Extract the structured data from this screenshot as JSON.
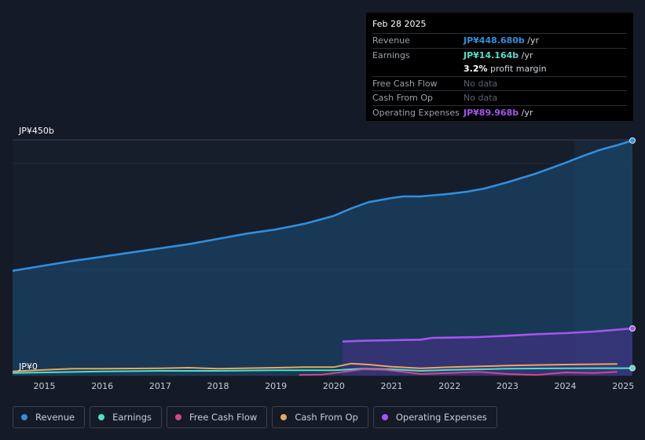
{
  "tooltip": {
    "date": "Feb 28 2025",
    "rows": {
      "revenue": {
        "label": "Revenue",
        "value": "JP¥448.680b",
        "suffix": " /yr"
      },
      "earnings": {
        "label": "Earnings",
        "value": "JP¥14.164b",
        "suffix": " /yr"
      },
      "margin": {
        "value": "3.2%",
        "suffix": " profit margin"
      },
      "fcf": {
        "label": "Free Cash Flow",
        "value": "No data"
      },
      "cfo": {
        "label": "Cash From Op",
        "value": "No data"
      },
      "opex": {
        "label": "Operating Expenses",
        "value": "JP¥89.968b",
        "suffix": " /yr"
      }
    }
  },
  "colors": {
    "revenue": "#2f8fe0",
    "earnings": "#4fe0c8",
    "fcf": "#d0488a",
    "cfo": "#e8a860",
    "opex": "#a555f0"
  },
  "legend": {
    "revenue": "Revenue",
    "earnings": "Earnings",
    "fcf": "Free Cash Flow",
    "cfo": "Cash From Op",
    "opex": "Operating Expenses"
  },
  "chart_data": {
    "type": "area",
    "title": "",
    "y_top_label": "JP¥450b",
    "y_bottom_label": "JP¥0",
    "ylim": [
      0,
      450
    ],
    "xlim": [
      2014.45,
      2025.16
    ],
    "x_ticks": [
      "2015",
      "2016",
      "2017",
      "2018",
      "2019",
      "2020",
      "2021",
      "2022",
      "2023",
      "2024",
      "2025"
    ],
    "x_tick_values": [
      2015,
      2016,
      2017,
      2018,
      2019,
      2020,
      2021,
      2022,
      2023,
      2024,
      2025
    ],
    "highlight_from": 2024.16,
    "series": [
      {
        "name": "Revenue",
        "key": "revenue",
        "x": [
          2014.45,
          2015.0,
          2015.5,
          2016.0,
          2016.5,
          2017.0,
          2017.5,
          2018.0,
          2018.5,
          2019.0,
          2019.5,
          2020.0,
          2020.3,
          2020.6,
          2021.0,
          2021.2,
          2021.5,
          2021.8,
          2022.0,
          2022.3,
          2022.6,
          2023.0,
          2023.5,
          2024.0,
          2024.3,
          2024.6,
          2024.9,
          2025.16
        ],
        "values": [
          200,
          210,
          219,
          227,
          235,
          243,
          251,
          261,
          271,
          279,
          290,
          305,
          319,
          331,
          339,
          342,
          342,
          345,
          347,
          351,
          357,
          369,
          386,
          406,
          419,
          431,
          440,
          448.68
        ]
      },
      {
        "name": "Operating Expenses",
        "key": "opex",
        "x": [
          2020.15,
          2020.5,
          2021.0,
          2021.5,
          2021.7,
          2022.0,
          2022.5,
          2023.0,
          2023.5,
          2024.0,
          2024.5,
          2025.16
        ],
        "values": [
          65,
          66.5,
          67.5,
          68.5,
          72,
          72.5,
          73.5,
          76,
          79,
          81,
          84,
          89.968
        ]
      },
      {
        "name": "Earnings",
        "key": "earnings",
        "x": [
          2014.45,
          2015.0,
          2016.0,
          2017.0,
          2018.0,
          2019.0,
          2020.0,
          2020.5,
          2021.0,
          2021.5,
          2022.0,
          2023.0,
          2024.0,
          2025.16
        ],
        "values": [
          5,
          6,
          8,
          9,
          9,
          10,
          10,
          13,
          12,
          9,
          11,
          13,
          14,
          14.164
        ]
      },
      {
        "name": "Cash From Op",
        "key": "cfo",
        "x": [
          2014.45,
          2015.0,
          2015.5,
          2016.0,
          2017.0,
          2017.5,
          2018.0,
          2019.0,
          2019.5,
          2020.0,
          2020.3,
          2020.6,
          2021.0,
          2021.5,
          2022.0,
          2023.0,
          2024.0,
          2024.9
        ],
        "values": [
          8,
          11,
          13,
          13,
          14,
          15,
          13,
          15,
          16,
          16,
          23,
          21,
          17,
          14,
          16,
          19,
          21,
          22
        ]
      },
      {
        "name": "Free Cash Flow",
        "key": "fcf",
        "x": [
          2019.4,
          2019.8,
          2020.1,
          2020.5,
          2020.9,
          2021.2,
          2021.5,
          2022.0,
          2022.5,
          2023.0,
          2023.5,
          2024.0,
          2024.5,
          2024.9
        ],
        "values": [
          1,
          2,
          6,
          12,
          11,
          7,
          3,
          5,
          7,
          3,
          1,
          6,
          5,
          7
        ]
      }
    ]
  }
}
